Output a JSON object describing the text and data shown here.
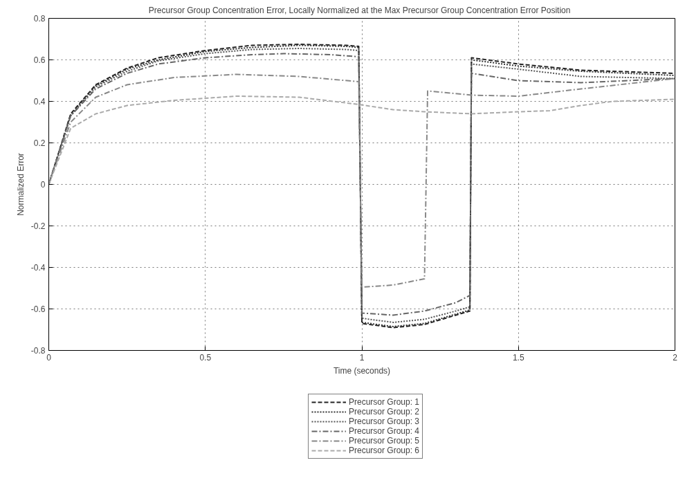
{
  "chart_data": {
    "type": "line",
    "title": "Precursor Group Concentration Error, Locally Normalized at the   Max Precursor Group Concentration Error Position",
    "xlabel": "Time (seconds)",
    "ylabel": "Normalized Error",
    "xlim": [
      0,
      2
    ],
    "ylim": [
      -0.8,
      0.8
    ],
    "xticks": [
      0,
      0.5,
      1,
      1.5,
      2
    ],
    "yticks": [
      -0.8,
      -0.6,
      -0.4,
      -0.2,
      0,
      0.2,
      0.4,
      0.6,
      0.8
    ],
    "grid": true,
    "legend": "bottom",
    "marker": "none",
    "series": [
      {
        "name": "Precursor Group: 1",
        "color": "#222222",
        "line_style": "dashed",
        "x": [
          0,
          0.07,
          0.15,
          0.25,
          0.35,
          0.5,
          0.65,
          0.8,
          0.95,
          0.99,
          1.0,
          1.1,
          1.2,
          1.3,
          1.345,
          1.35,
          1.5,
          1.7,
          2.0
        ],
        "values": [
          0,
          0.34,
          0.48,
          0.56,
          0.61,
          0.645,
          0.67,
          0.675,
          0.67,
          0.665,
          -0.67,
          -0.69,
          -0.675,
          -0.63,
          -0.61,
          0.61,
          0.58,
          0.55,
          0.535
        ]
      },
      {
        "name": "Precursor Group: 2",
        "color": "#333333",
        "line_style": "dotted",
        "x": [
          0,
          0.07,
          0.15,
          0.25,
          0.35,
          0.5,
          0.65,
          0.8,
          0.95,
          0.99,
          1.0,
          1.1,
          1.2,
          1.3,
          1.345,
          1.35,
          1.5,
          1.7,
          2.0
        ],
        "values": [
          0,
          0.335,
          0.475,
          0.555,
          0.6,
          0.64,
          0.66,
          0.67,
          0.665,
          0.66,
          -0.665,
          -0.685,
          -0.67,
          -0.625,
          -0.605,
          0.6,
          0.57,
          0.545,
          0.525
        ]
      },
      {
        "name": "Precursor Group: 3",
        "color": "#555555",
        "line_style": "dotted",
        "x": [
          0,
          0.07,
          0.15,
          0.25,
          0.35,
          0.5,
          0.65,
          0.8,
          0.95,
          0.99,
          1.0,
          1.1,
          1.2,
          1.3,
          1.345,
          1.35,
          1.5,
          1.7,
          2.0
        ],
        "values": [
          0,
          0.33,
          0.47,
          0.545,
          0.595,
          0.63,
          0.65,
          0.655,
          0.65,
          0.645,
          -0.645,
          -0.665,
          -0.65,
          -0.61,
          -0.59,
          0.58,
          0.555,
          0.52,
          0.51
        ]
      },
      {
        "name": "Precursor Group: 4",
        "color": "#666666",
        "line_style": "dashdot",
        "x": [
          0,
          0.07,
          0.15,
          0.25,
          0.35,
          0.5,
          0.65,
          0.75,
          0.9,
          0.99,
          1.0,
          1.1,
          1.2,
          1.3,
          1.345,
          1.35,
          1.5,
          1.7,
          2.0
        ],
        "values": [
          0,
          0.33,
          0.46,
          0.535,
          0.58,
          0.61,
          0.625,
          0.63,
          0.625,
          0.615,
          -0.62,
          -0.63,
          -0.61,
          -0.57,
          -0.535,
          0.535,
          0.5,
          0.49,
          0.51
        ]
      },
      {
        "name": "Precursor Group: 5",
        "color": "#888888",
        "line_style": "dashdot",
        "x": [
          0,
          0.07,
          0.15,
          0.25,
          0.4,
          0.6,
          0.8,
          0.99,
          1.0,
          1.1,
          1.2,
          1.21,
          1.35,
          1.5,
          1.7,
          2.0
        ],
        "values": [
          0,
          0.3,
          0.42,
          0.48,
          0.515,
          0.53,
          0.52,
          0.495,
          -0.495,
          -0.485,
          -0.455,
          0.45,
          0.43,
          0.425,
          0.46,
          0.51
        ]
      },
      {
        "name": "Precursor Group: 6",
        "color": "#aaaaaa",
        "line_style": "dashed",
        "x": [
          0,
          0.07,
          0.15,
          0.25,
          0.4,
          0.6,
          0.8,
          0.99,
          1.1,
          1.2,
          1.35,
          1.5,
          1.6,
          1.7,
          1.8,
          2.0
        ],
        "values": [
          0,
          0.27,
          0.34,
          0.38,
          0.405,
          0.425,
          0.42,
          0.385,
          0.36,
          0.35,
          0.34,
          0.35,
          0.355,
          0.38,
          0.4,
          0.41
        ]
      }
    ]
  }
}
